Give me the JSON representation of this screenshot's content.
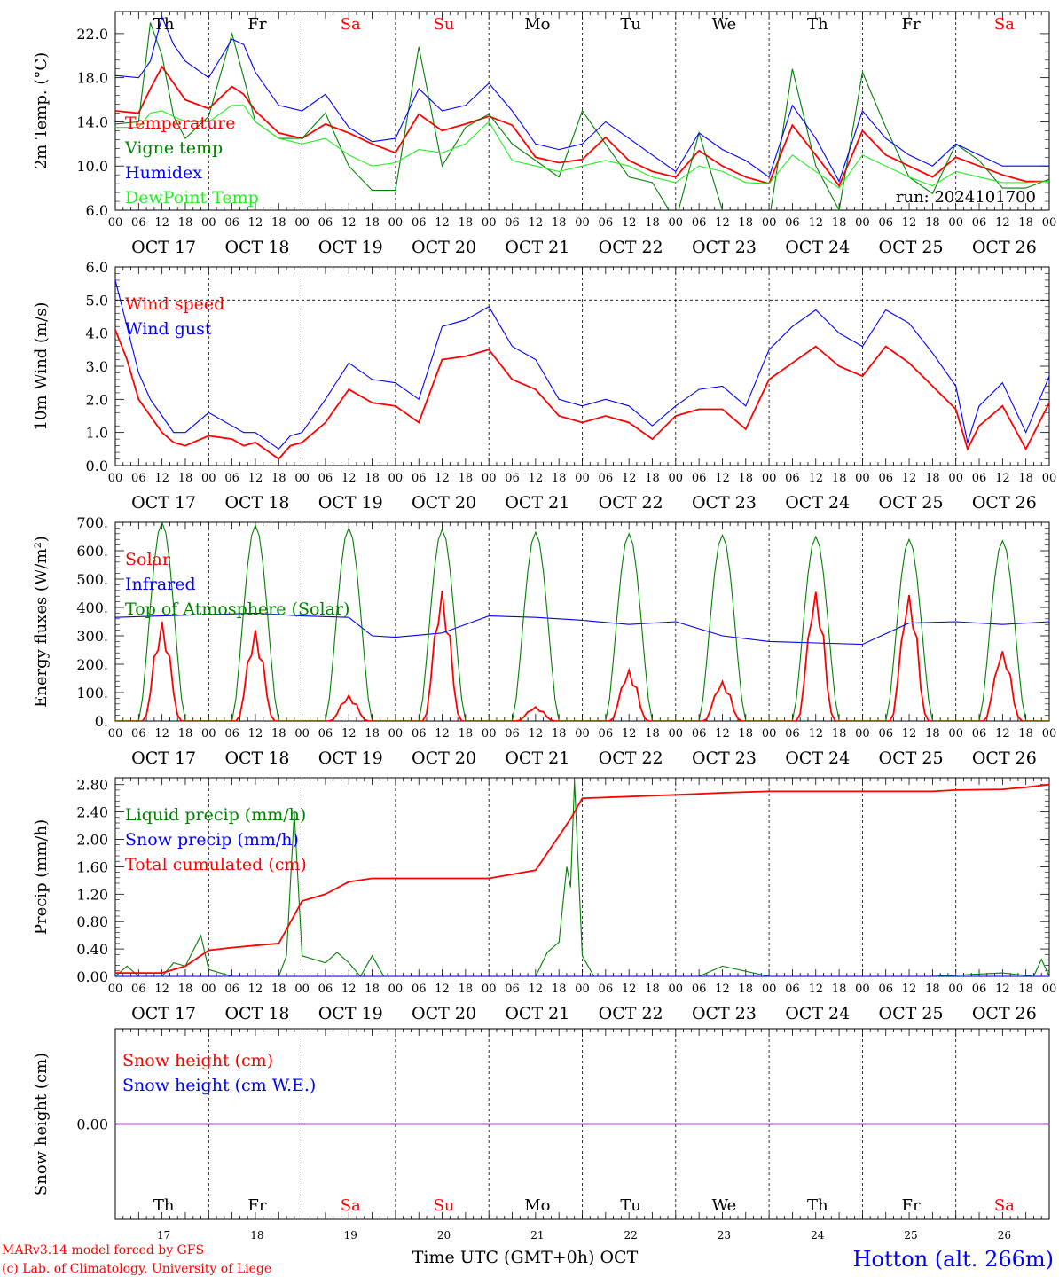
{
  "location": "Hotton (alt. 266m)",
  "credits": [
    "MARv3.14 model forced by GFS",
    "(c) Lab. of Climatology, University of Liege"
  ],
  "time_axis_label": "Time UTC (GMT+0h) OCT",
  "days": [
    "17",
    "18",
    "19",
    "20",
    "21",
    "22",
    "23",
    "24",
    "25",
    "26"
  ],
  "day_labels": [
    "OCT 17",
    "OCT 18",
    "OCT 19",
    "OCT 20",
    "OCT 21",
    "OCT 22",
    "OCT 23",
    "OCT 24",
    "OCT 25",
    "OCT 26"
  ],
  "weekdays": [
    "Th",
    "Fr",
    "Sa",
    "Su",
    "Mo",
    "Tu",
    "We",
    "Th",
    "Fr",
    "Sa"
  ],
  "weekday_colors": [
    "#000000",
    "#000000",
    "#ff0000",
    "#ff0000",
    "#000000",
    "#000000",
    "#000000",
    "#000000",
    "#000000",
    "#ff0000"
  ],
  "hour_ticks": [
    "00",
    "06",
    "12",
    "18"
  ],
  "hour_end": "00",
  "run_label": "run: 2024101700",
  "colors": {
    "red": "#ff0000",
    "green": "#008000",
    "blue": "#0000ff",
    "lightgreen": "#22ee22",
    "purple": "#7a1fa0"
  },
  "chart_data": [
    {
      "type": "line",
      "ylabel": "2m Temp. (°C)",
      "ylim": [
        6,
        24
      ],
      "yticks": [
        "6.0",
        "10.0",
        "14.0",
        "18.0",
        "22.0"
      ],
      "x_unit": "hours since Oct 17 00 UTC",
      "x": [
        0,
        6,
        9,
        12,
        15,
        18,
        24,
        30,
        33,
        36,
        42,
        48,
        54,
        60,
        66,
        72,
        78,
        84,
        90,
        96,
        102,
        108,
        114,
        120,
        126,
        132,
        138,
        144,
        150,
        156,
        162,
        168,
        174,
        180,
        186,
        192,
        198,
        204,
        210,
        216,
        222,
        228,
        234,
        240
      ],
      "series": [
        {
          "name": "Temperature",
          "color": "red",
          "values": [
            15.0,
            14.8,
            17.0,
            19.0,
            17.5,
            16.0,
            15.2,
            17.2,
            16.5,
            15.0,
            13.0,
            12.5,
            13.8,
            13.0,
            12.0,
            11.2,
            14.7,
            13.2,
            13.8,
            14.5,
            13.7,
            10.8,
            10.3,
            10.6,
            12.6,
            10.5,
            9.5,
            9.0,
            11.4,
            10.0,
            9.0,
            8.4,
            13.7,
            11.0,
            8.2,
            13.2,
            11.0,
            10.0,
            9.0,
            10.8,
            10.0,
            9.2,
            8.6,
            8.6
          ]
        },
        {
          "name": "Vigne temp",
          "color": "green",
          "values": [
            13.8,
            14.0,
            23.0,
            20.0,
            14.5,
            12.5,
            14.5,
            22.0,
            18.0,
            14.0,
            12.5,
            12.5,
            14.8,
            10.0,
            7.8,
            7.8,
            20.8,
            10.0,
            13.5,
            14.7,
            12.0,
            10.5,
            9.0,
            15.0,
            12.0,
            9.0,
            8.5,
            5.0,
            13.0,
            6.0,
            5.0,
            5.0,
            18.8,
            10.0,
            6.0,
            18.5,
            13.5,
            9.0,
            7.5,
            12.0,
            10.5,
            8.0,
            8.0,
            8.8
          ]
        },
        {
          "name": "Humidex",
          "color": "blue",
          "values": [
            18.2,
            18.0,
            19.5,
            23.5,
            21.0,
            19.5,
            18.0,
            21.5,
            21.0,
            18.5,
            15.5,
            15.0,
            16.5,
            13.5,
            12.2,
            12.5,
            17.0,
            15.0,
            15.5,
            17.5,
            15.0,
            12.0,
            11.5,
            12.0,
            14.0,
            12.5,
            11.0,
            9.5,
            13.0,
            11.5,
            10.5,
            9.0,
            15.5,
            12.5,
            8.6,
            15.0,
            12.5,
            11.0,
            10.0,
            12.0,
            11.0,
            10.0,
            10.0,
            10.0
          ]
        },
        {
          "name": "DewPoint Temp",
          "color": "lightgreen",
          "values": [
            13.5,
            13.5,
            14.8,
            15.0,
            14.5,
            14.0,
            14.0,
            15.5,
            15.5,
            14.0,
            12.5,
            12.0,
            12.5,
            11.0,
            10.0,
            10.3,
            11.5,
            11.2,
            12.0,
            14.0,
            10.5,
            10.0,
            9.5,
            10.0,
            10.5,
            10.0,
            9.0,
            8.5,
            10.0,
            9.5,
            8.5,
            8.4,
            11.0,
            9.5,
            8.0,
            11.0,
            10.0,
            9.0,
            8.2,
            9.5,
            9.0,
            8.5,
            8.5,
            8.6
          ]
        }
      ]
    },
    {
      "type": "line",
      "ylabel": "10m Wind (m/s)",
      "ylim": [
        0,
        6
      ],
      "yticks": [
        "0.0",
        "1.0",
        "2.0",
        "3.0",
        "4.0",
        "5.0",
        "6.0"
      ],
      "reference_line": 5.0,
      "x_unit": "hours since Oct 17 00 UTC",
      "x": [
        0,
        3,
        6,
        9,
        12,
        15,
        18,
        24,
        30,
        33,
        36,
        42,
        45,
        48,
        54,
        60,
        66,
        72,
        78,
        84,
        90,
        96,
        102,
        108,
        114,
        120,
        126,
        132,
        138,
        144,
        150,
        156,
        162,
        168,
        174,
        180,
        186,
        192,
        198,
        204,
        210,
        216,
        219,
        222,
        228,
        234,
        240
      ],
      "series": [
        {
          "name": "Wind speed",
          "color": "red",
          "values": [
            4.1,
            3.2,
            2.0,
            1.5,
            1.0,
            0.7,
            0.6,
            0.9,
            0.8,
            0.6,
            0.7,
            0.2,
            0.6,
            0.7,
            1.3,
            2.3,
            1.9,
            1.8,
            1.3,
            3.2,
            3.3,
            3.5,
            2.6,
            2.3,
            1.5,
            1.3,
            1.5,
            1.3,
            0.8,
            1.5,
            1.7,
            1.7,
            1.1,
            2.6,
            3.1,
            3.6,
            3.0,
            2.7,
            3.6,
            3.1,
            2.4,
            1.7,
            0.5,
            1.2,
            1.8,
            0.5,
            1.9
          ]
        },
        {
          "name": "Wind gust",
          "color": "blue",
          "values": [
            5.6,
            4.2,
            2.8,
            2.0,
            1.5,
            1.0,
            1.0,
            1.6,
            1.2,
            1.0,
            1.0,
            0.5,
            0.9,
            1.0,
            2.0,
            3.1,
            2.6,
            2.5,
            2.0,
            4.2,
            4.4,
            4.8,
            3.6,
            3.2,
            2.0,
            1.8,
            2.0,
            1.8,
            1.2,
            1.8,
            2.3,
            2.4,
            1.8,
            3.5,
            4.2,
            4.7,
            4.0,
            3.6,
            4.7,
            4.3,
            3.4,
            2.4,
            0.7,
            1.8,
            2.5,
            1.0,
            2.7
          ]
        }
      ]
    },
    {
      "type": "line",
      "ylabel": "Energy fluxes (W/m²)",
      "ylim": [
        0,
        700
      ],
      "yticks": [
        "0.",
        "100.",
        "200.",
        "300.",
        "400.",
        "500.",
        "600.",
        "700."
      ],
      "x_unit": "hours since Oct 17 00 UTC",
      "series": [
        {
          "name": "Solar",
          "color": "red",
          "peaks": [
            350,
            320,
            90,
            460,
            50,
            180,
            140,
            460,
            450,
            250
          ]
        },
        {
          "name": "Infrared",
          "color": "blue",
          "x": [
            0,
            12,
            24,
            36,
            48,
            60,
            66,
            72,
            84,
            96,
            108,
            120,
            132,
            144,
            156,
            168,
            180,
            192,
            204,
            216,
            228,
            240
          ],
          "values": [
            365,
            370,
            375,
            380,
            370,
            365,
            300,
            295,
            310,
            370,
            365,
            355,
            340,
            350,
            300,
            280,
            275,
            270,
            345,
            350,
            340,
            350
          ]
        },
        {
          "name": "Top of Atmosphere (Solar)",
          "color": "green",
          "peaks": [
            700,
            690,
            680,
            675,
            665,
            660,
            655,
            650,
            640,
            635
          ]
        }
      ]
    },
    {
      "type": "line",
      "ylabel": "Precip (mm/h)",
      "ylim": [
        0,
        2.9
      ],
      "yticks": [
        "0.00",
        "0.40",
        "0.80",
        "1.20",
        "1.60",
        "2.00",
        "2.40",
        "2.80"
      ],
      "x_unit": "hours since Oct 17 00 UTC",
      "series": [
        {
          "name": "Liquid precip (mm/h)",
          "color": "green",
          "x": [
            0,
            3,
            6,
            12,
            15,
            18,
            22,
            24,
            27,
            30,
            36,
            42,
            44,
            46,
            48,
            54,
            57,
            60,
            63,
            66,
            69,
            96,
            102,
            108,
            111,
            114,
            116,
            117,
            118,
            120,
            123,
            150,
            156,
            168,
            210,
            228,
            236,
            238,
            240
          ],
          "values": [
            0,
            0.15,
            0,
            0,
            0.2,
            0.15,
            0.6,
            0.1,
            0.05,
            0,
            0,
            0,
            0.3,
            2.4,
            0.3,
            0.2,
            0.35,
            0.2,
            0,
            0.3,
            0,
            0,
            0,
            0,
            0.35,
            0.5,
            1.6,
            1.3,
            2.85,
            0.3,
            0,
            0,
            0.15,
            0,
            0,
            0.05,
            0,
            0.25,
            0
          ]
        },
        {
          "name": "Snow precip (mm/h)",
          "color": "blue",
          "x": [
            0,
            240
          ],
          "values": [
            0,
            0
          ]
        },
        {
          "name": "Total cumulated (cm)",
          "color": "red",
          "x": [
            0,
            6,
            12,
            18,
            24,
            30,
            36,
            42,
            48,
            54,
            60,
            66,
            72,
            96,
            108,
            114,
            117,
            120,
            144,
            156,
            168,
            192,
            210,
            216,
            228,
            234,
            240
          ],
          "values": [
            0.05,
            0.05,
            0.05,
            0.15,
            0.38,
            0.42,
            0.45,
            0.48,
            1.1,
            1.2,
            1.38,
            1.43,
            1.43,
            1.43,
            1.55,
            2.05,
            2.3,
            2.6,
            2.65,
            2.68,
            2.7,
            2.7,
            2.7,
            2.72,
            2.73,
            2.76,
            2.8
          ]
        }
      ]
    },
    {
      "type": "line",
      "ylabel": "Snow height (cm)",
      "ylim": [
        -1,
        1
      ],
      "yticks": [
        "0.00"
      ],
      "x_unit": "hours since Oct 17 00 UTC",
      "series": [
        {
          "name": "Snow height (cm)",
          "color": "red",
          "x": [
            0,
            240
          ],
          "values": [
            0,
            0
          ]
        },
        {
          "name": "Snow height (cm W.E.)",
          "color": "blue",
          "x": [
            0,
            240
          ],
          "values": [
            0,
            0
          ]
        }
      ]
    }
  ]
}
